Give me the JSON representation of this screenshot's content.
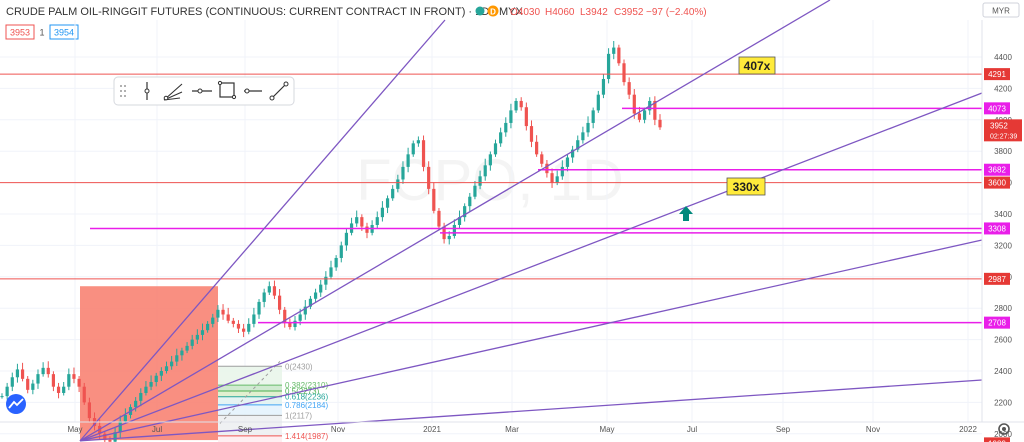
{
  "header": {
    "title": "CRUDE PALM OIL-RINGGIT FUTURES (CONTINUOUS: CURRENT CONTRACT IN FRONT) · 1D · MYX",
    "delayed_badge": "D",
    "open": "O4030",
    "high": "H4060",
    "low": "L3942",
    "close": "C3952",
    "change": "−97 (−2.40%)",
    "bid": "3953",
    "spread": "1",
    "ask": "3954",
    "currency": "MYR",
    "watermark": "FCPO, 1D"
  },
  "colors": {
    "up_candle": "#26a69a",
    "down_candle": "#ef5350",
    "trend_line": "#7e57c2",
    "level_magenta": "#e91ee9",
    "level_red": "#ef5350",
    "box_fill": "#f88373",
    "label_yellow": "#ffeb3b",
    "arrow_teal": "#00897b",
    "price_tag": "#e53935"
  },
  "toolbar": {
    "items": [
      "drag-handle",
      "vertical-line",
      "fan",
      "horizontal-ray",
      "rectangle",
      "horizontal-line",
      "trend-line"
    ]
  },
  "annotations": {
    "label_407": "407x",
    "label_330": "330x",
    "last_price": "3952",
    "countdown": "02:27:39"
  },
  "fib": [
    {
      "label": "0(2430)",
      "color": "#9e9e9e"
    },
    {
      "label": "0.382(2310)",
      "color": "#66bb6a"
    },
    {
      "label": "0.5(2273)",
      "color": "#4caf50"
    },
    {
      "label": "0.618(2236)",
      "color": "#26a69a"
    },
    {
      "label": "0.786(2184)",
      "color": "#42a5f5"
    },
    {
      "label": "1(2117)",
      "color": "#9e9e9e"
    },
    {
      "label": "1.414(1987)",
      "color": "#ef5350"
    },
    {
      "label": "1.618(1923)",
      "color": "#1e88e5"
    }
  ],
  "chart_data": {
    "type": "candlestick",
    "symbol": "FCPO",
    "timeframe": "1D",
    "y_axis_ticks": [
      2000,
      2200,
      2400,
      2600,
      2800,
      3000,
      3200,
      3400,
      3600,
      3800,
      4000,
      4200,
      4400
    ],
    "x_axis_ticks": [
      "May",
      "Jul",
      "Sep",
      "Nov",
      "2021",
      "Mar",
      "May",
      "Jul",
      "Sep",
      "Nov",
      "2022"
    ],
    "horizontal_levels": [
      4291,
      4073,
      3682,
      3600,
      3308,
      2987,
      2708,
      1939
    ],
    "last_price": 3952,
    "approx_closes": [
      2240,
      2300,
      2360,
      2410,
      2350,
      2280,
      2320,
      2380,
      2420,
      2380,
      2300,
      2260,
      2300,
      2380,
      2350,
      2300,
      2200,
      2100,
      2050,
      2000,
      1960,
      1950,
      2010,
      2080,
      2120,
      2170,
      2210,
      2260,
      2300,
      2330,
      2370,
      2400,
      2430,
      2460,
      2500,
      2530,
      2560,
      2600,
      2630,
      2660,
      2700,
      2740,
      2790,
      2760,
      2720,
      2700,
      2670,
      2650,
      2700,
      2760,
      2840,
      2900,
      2940,
      2880,
      2790,
      2710,
      2680,
      2720,
      2760,
      2810,
      2860,
      2900,
      2950,
      3000,
      3060,
      3120,
      3200,
      3280,
      3340,
      3380,
      3320,
      3280,
      3330,
      3380,
      3440,
      3500,
      3560,
      3620,
      3700,
      3780,
      3850,
      3870,
      3700,
      3560,
      3420,
      3320,
      3240,
      3260,
      3330,
      3380,
      3450,
      3510,
      3580,
      3640,
      3710,
      3780,
      3850,
      3920,
      3980,
      4060,
      4120,
      4080,
      3960,
      3860,
      3780,
      3720,
      3660,
      3600,
      3640,
      3700,
      3760,
      3810,
      3870,
      3920,
      3980,
      4060,
      4160,
      4260,
      4420,
      4460,
      4360,
      4240,
      4160,
      4040,
      4000,
      4060,
      4120,
      4000,
      3952
    ]
  }
}
